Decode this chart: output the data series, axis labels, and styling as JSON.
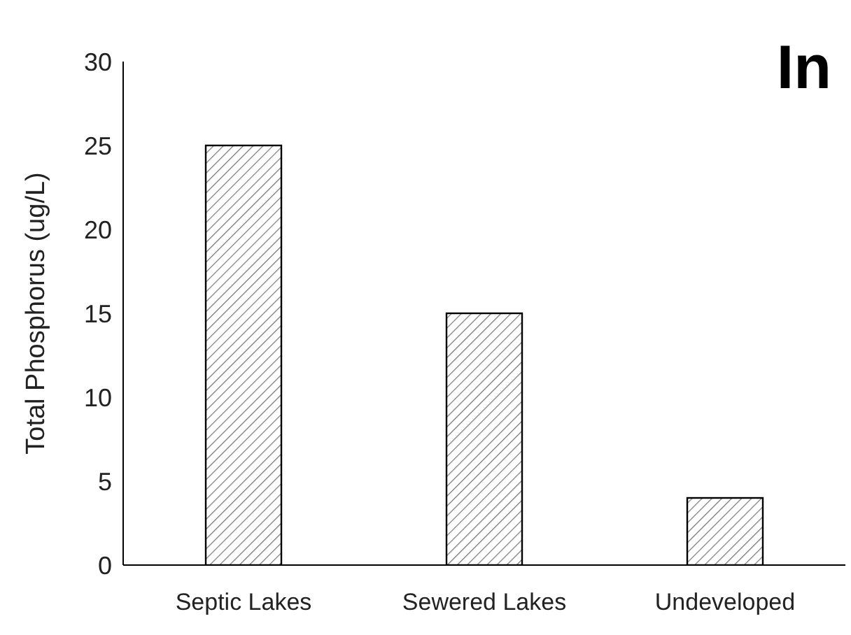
{
  "chart_data": {
    "type": "bar",
    "title": "In",
    "ylabel": "Total Phosphorus (ug/L)",
    "categories": [
      "Septic Lakes",
      "Sewered Lakes",
      "Undeveloped"
    ],
    "values": [
      25,
      15,
      4
    ],
    "color": "#000000",
    "ylim": [
      0,
      30
    ],
    "yticks": [
      0,
      5,
      10,
      15,
      20,
      25,
      30
    ],
    "grid": false
  }
}
